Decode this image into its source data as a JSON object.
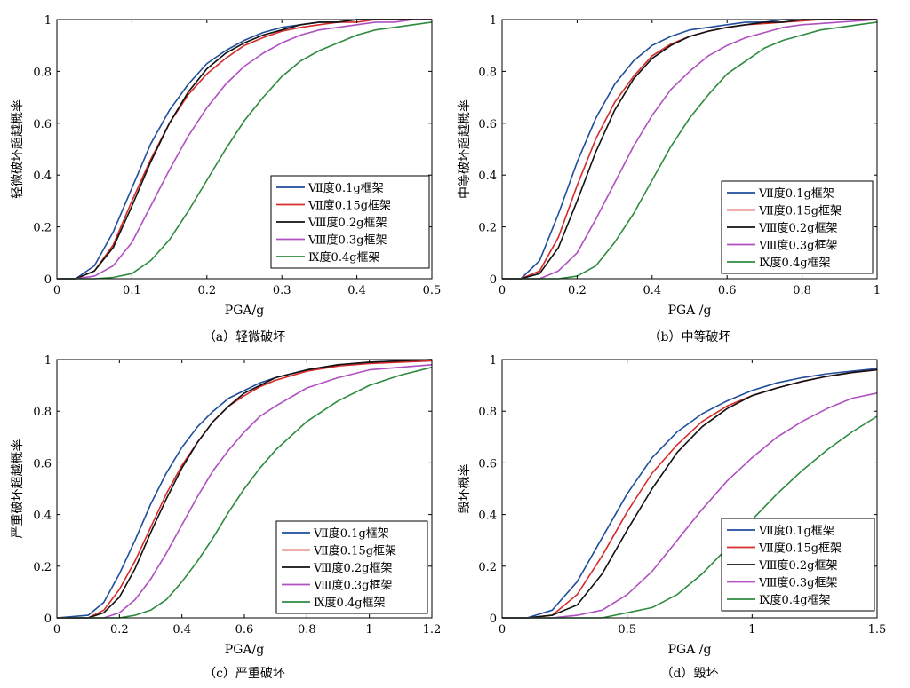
{
  "colors": {
    "s1": "#1f4e9c",
    "s2": "#d62b2b",
    "s3": "#111111",
    "s4": "#b04fc0",
    "s5": "#2e8b3e"
  },
  "chart_data": [
    {
      "type": "line",
      "caption": "（a）轻微破坏",
      "xlabel": "PGA/g",
      "ylabel": "轻微破坏超越概率",
      "xlim": [
        0,
        0.5
      ],
      "ylim": [
        0,
        1
      ],
      "xticks": [
        "0",
        "0.1",
        "0.2",
        "0.3",
        "0.4",
        "0.5"
      ],
      "yticks": [
        "0",
        "0.2",
        "0.4",
        "0.6",
        "0.8",
        "1"
      ],
      "grid": false,
      "legend_position": "lower-right",
      "x": [
        0,
        0.025,
        0.05,
        0.075,
        0.1,
        0.125,
        0.15,
        0.175,
        0.2,
        0.225,
        0.25,
        0.275,
        0.3,
        0.325,
        0.35,
        0.375,
        0.4,
        0.425,
        0.45,
        0.475,
        0.5
      ],
      "series": [
        {
          "name": "Ⅶ度0.1g框架",
          "values": [
            0,
            0.0,
            0.05,
            0.18,
            0.35,
            0.52,
            0.65,
            0.75,
            0.83,
            0.88,
            0.92,
            0.95,
            0.97,
            0.98,
            0.99,
            0.99,
            1.0,
            1.0,
            1.0,
            1.0,
            1.0
          ]
        },
        {
          "name": "Ⅶ度0.15g框架",
          "values": [
            0,
            0.0,
            0.03,
            0.13,
            0.3,
            0.46,
            0.6,
            0.71,
            0.79,
            0.85,
            0.9,
            0.93,
            0.955,
            0.97,
            0.98,
            0.99,
            0.99,
            1.0,
            1.0,
            1.0,
            1.0
          ]
        },
        {
          "name": "Ⅷ度0.2g框架",
          "values": [
            0,
            0.0,
            0.03,
            0.12,
            0.28,
            0.45,
            0.6,
            0.72,
            0.81,
            0.87,
            0.91,
            0.94,
            0.96,
            0.98,
            0.99,
            0.99,
            1.0,
            1.0,
            1.0,
            1.0,
            1.0
          ]
        },
        {
          "name": "Ⅷ度0.3g框架",
          "values": [
            0,
            0.0,
            0.01,
            0.05,
            0.14,
            0.28,
            0.42,
            0.55,
            0.66,
            0.75,
            0.82,
            0.87,
            0.91,
            0.94,
            0.96,
            0.97,
            0.98,
            0.99,
            0.99,
            1.0,
            1.0
          ]
        },
        {
          "name": "Ⅸ度0.4g框架",
          "values": [
            0,
            0.0,
            0.0,
            0.005,
            0.02,
            0.07,
            0.15,
            0.26,
            0.38,
            0.5,
            0.61,
            0.7,
            0.78,
            0.84,
            0.88,
            0.91,
            0.94,
            0.96,
            0.97,
            0.98,
            0.99
          ]
        }
      ]
    },
    {
      "type": "line",
      "caption": "（b）中等破坏",
      "xlabel": "PGA /g",
      "ylabel": "中等破坏超越概率",
      "xlim": [
        0,
        1
      ],
      "ylim": [
        0,
        1
      ],
      "xticks": [
        "0",
        "0.2",
        "0.4",
        "0.6",
        "0.8",
        "1"
      ],
      "yticks": [
        "0",
        "0.2",
        "0.4",
        "0.6",
        "0.8",
        "1"
      ],
      "grid": false,
      "legend_position": "lower-right",
      "x": [
        0,
        0.05,
        0.1,
        0.15,
        0.2,
        0.25,
        0.3,
        0.35,
        0.4,
        0.45,
        0.5,
        0.55,
        0.6,
        0.65,
        0.7,
        0.75,
        0.8,
        0.85,
        0.9,
        0.95,
        1.0
      ],
      "series": [
        {
          "name": "Ⅶ度0.1g框架",
          "values": [
            0,
            0.0,
            0.07,
            0.25,
            0.45,
            0.62,
            0.75,
            0.84,
            0.9,
            0.935,
            0.96,
            0.97,
            0.98,
            0.99,
            0.99,
            1.0,
            1.0,
            1.0,
            1.0,
            1.0,
            1.0
          ]
        },
        {
          "name": "Ⅶ度0.15g框架",
          "values": [
            0,
            0.0,
            0.03,
            0.16,
            0.36,
            0.54,
            0.68,
            0.78,
            0.86,
            0.905,
            0.935,
            0.955,
            0.97,
            0.98,
            0.985,
            0.99,
            0.995,
            1.0,
            1.0,
            1.0,
            1.0
          ]
        },
        {
          "name": "Ⅷ度0.2g框架",
          "values": [
            0,
            0.0,
            0.02,
            0.12,
            0.3,
            0.49,
            0.65,
            0.77,
            0.85,
            0.9,
            0.935,
            0.955,
            0.97,
            0.98,
            0.99,
            0.99,
            1.0,
            1.0,
            1.0,
            1.0,
            1.0
          ]
        },
        {
          "name": "Ⅷ度0.3g框架",
          "values": [
            0,
            0.0,
            0.0,
            0.03,
            0.1,
            0.23,
            0.37,
            0.51,
            0.63,
            0.73,
            0.8,
            0.86,
            0.9,
            0.93,
            0.95,
            0.97,
            0.98,
            0.985,
            0.99,
            0.995,
            1.0
          ]
        },
        {
          "name": "Ⅸ度0.4g框架",
          "values": [
            0,
            0.0,
            0.0,
            0.0,
            0.01,
            0.05,
            0.14,
            0.25,
            0.38,
            0.51,
            0.62,
            0.71,
            0.79,
            0.84,
            0.89,
            0.92,
            0.94,
            0.96,
            0.97,
            0.98,
            0.99
          ]
        }
      ]
    },
    {
      "type": "line",
      "caption": "（c）严重破坏",
      "xlabel": "PGA/g",
      "ylabel": "严重破坏超越概率",
      "xlim": [
        0,
        1.2
      ],
      "ylim": [
        0,
        1
      ],
      "xticks": [
        "0",
        "0.2",
        "0.4",
        "0.6",
        "0.8",
        "1",
        "1.2"
      ],
      "yticks": [
        "0",
        "0.2",
        "0.4",
        "0.6",
        "0.8",
        "1"
      ],
      "grid": false,
      "legend_position": "lower-right",
      "x": [
        0,
        0.1,
        0.15,
        0.2,
        0.25,
        0.3,
        0.35,
        0.4,
        0.45,
        0.5,
        0.55,
        0.6,
        0.65,
        0.7,
        0.8,
        0.9,
        1.0,
        1.1,
        1.2
      ],
      "series": [
        {
          "name": "Ⅶ度0.1g框架",
          "values": [
            0,
            0.01,
            0.06,
            0.17,
            0.3,
            0.44,
            0.56,
            0.66,
            0.74,
            0.8,
            0.85,
            0.88,
            0.91,
            0.93,
            0.96,
            0.98,
            0.99,
            0.995,
            1.0
          ]
        },
        {
          "name": "Ⅶ度0.15g框架",
          "values": [
            0,
            0.0,
            0.03,
            0.11,
            0.22,
            0.35,
            0.48,
            0.59,
            0.68,
            0.76,
            0.82,
            0.86,
            0.895,
            0.92,
            0.955,
            0.975,
            0.985,
            0.99,
            0.995
          ]
        },
        {
          "name": "Ⅷ度0.2g框架",
          "values": [
            0,
            0.0,
            0.02,
            0.08,
            0.19,
            0.33,
            0.46,
            0.58,
            0.68,
            0.76,
            0.82,
            0.87,
            0.9,
            0.93,
            0.96,
            0.98,
            0.99,
            0.995,
            1.0
          ]
        },
        {
          "name": "Ⅷ度0.3g框架",
          "values": [
            0,
            0.0,
            0.0,
            0.02,
            0.07,
            0.15,
            0.25,
            0.36,
            0.47,
            0.57,
            0.65,
            0.72,
            0.78,
            0.82,
            0.89,
            0.93,
            0.96,
            0.97,
            0.98
          ]
        },
        {
          "name": "Ⅸ度0.4g框架",
          "values": [
            0,
            0.0,
            0.0,
            0.0,
            0.01,
            0.03,
            0.07,
            0.14,
            0.22,
            0.31,
            0.41,
            0.5,
            0.58,
            0.65,
            0.76,
            0.84,
            0.9,
            0.94,
            0.97
          ]
        }
      ]
    },
    {
      "type": "line",
      "caption": "（d）毁坏",
      "xlabel": "PGA /g",
      "ylabel": "毁坏概率",
      "xlim": [
        0,
        1.5
      ],
      "ylim": [
        0,
        1
      ],
      "xticks": [
        "0",
        "0.5",
        "1",
        "1.5"
      ],
      "yticks": [
        "0",
        "0.2",
        "0.4",
        "0.6",
        "0.8",
        "1"
      ],
      "grid": false,
      "legend_position": "lower-right",
      "x": [
        0,
        0.1,
        0.2,
        0.3,
        0.4,
        0.5,
        0.6,
        0.7,
        0.8,
        0.9,
        1.0,
        1.1,
        1.2,
        1.3,
        1.4,
        1.5
      ],
      "series": [
        {
          "name": "Ⅶ度0.1g框架",
          "values": [
            0,
            0.0,
            0.03,
            0.14,
            0.31,
            0.48,
            0.62,
            0.72,
            0.79,
            0.84,
            0.88,
            0.91,
            0.93,
            0.945,
            0.955,
            0.965
          ]
        },
        {
          "name": "Ⅶ度0.15g框架",
          "values": [
            0,
            0.0,
            0.01,
            0.09,
            0.24,
            0.41,
            0.56,
            0.67,
            0.76,
            0.82,
            0.86,
            0.89,
            0.915,
            0.935,
            0.95,
            0.96
          ]
        },
        {
          "name": "Ⅷ度0.2g框架",
          "values": [
            0,
            0.0,
            0.01,
            0.05,
            0.17,
            0.34,
            0.5,
            0.64,
            0.74,
            0.81,
            0.86,
            0.89,
            0.915,
            0.935,
            0.95,
            0.96
          ]
        },
        {
          "name": "Ⅷ度0.3g框架",
          "values": [
            0,
            0.0,
            0.0,
            0.01,
            0.03,
            0.09,
            0.18,
            0.3,
            0.42,
            0.53,
            0.62,
            0.7,
            0.76,
            0.81,
            0.85,
            0.87
          ]
        },
        {
          "name": "Ⅸ度0.4g框架",
          "values": [
            0,
            0.0,
            0.0,
            0.0,
            0.0,
            0.02,
            0.04,
            0.09,
            0.17,
            0.27,
            0.38,
            0.48,
            0.57,
            0.65,
            0.72,
            0.78
          ]
        }
      ]
    }
  ]
}
